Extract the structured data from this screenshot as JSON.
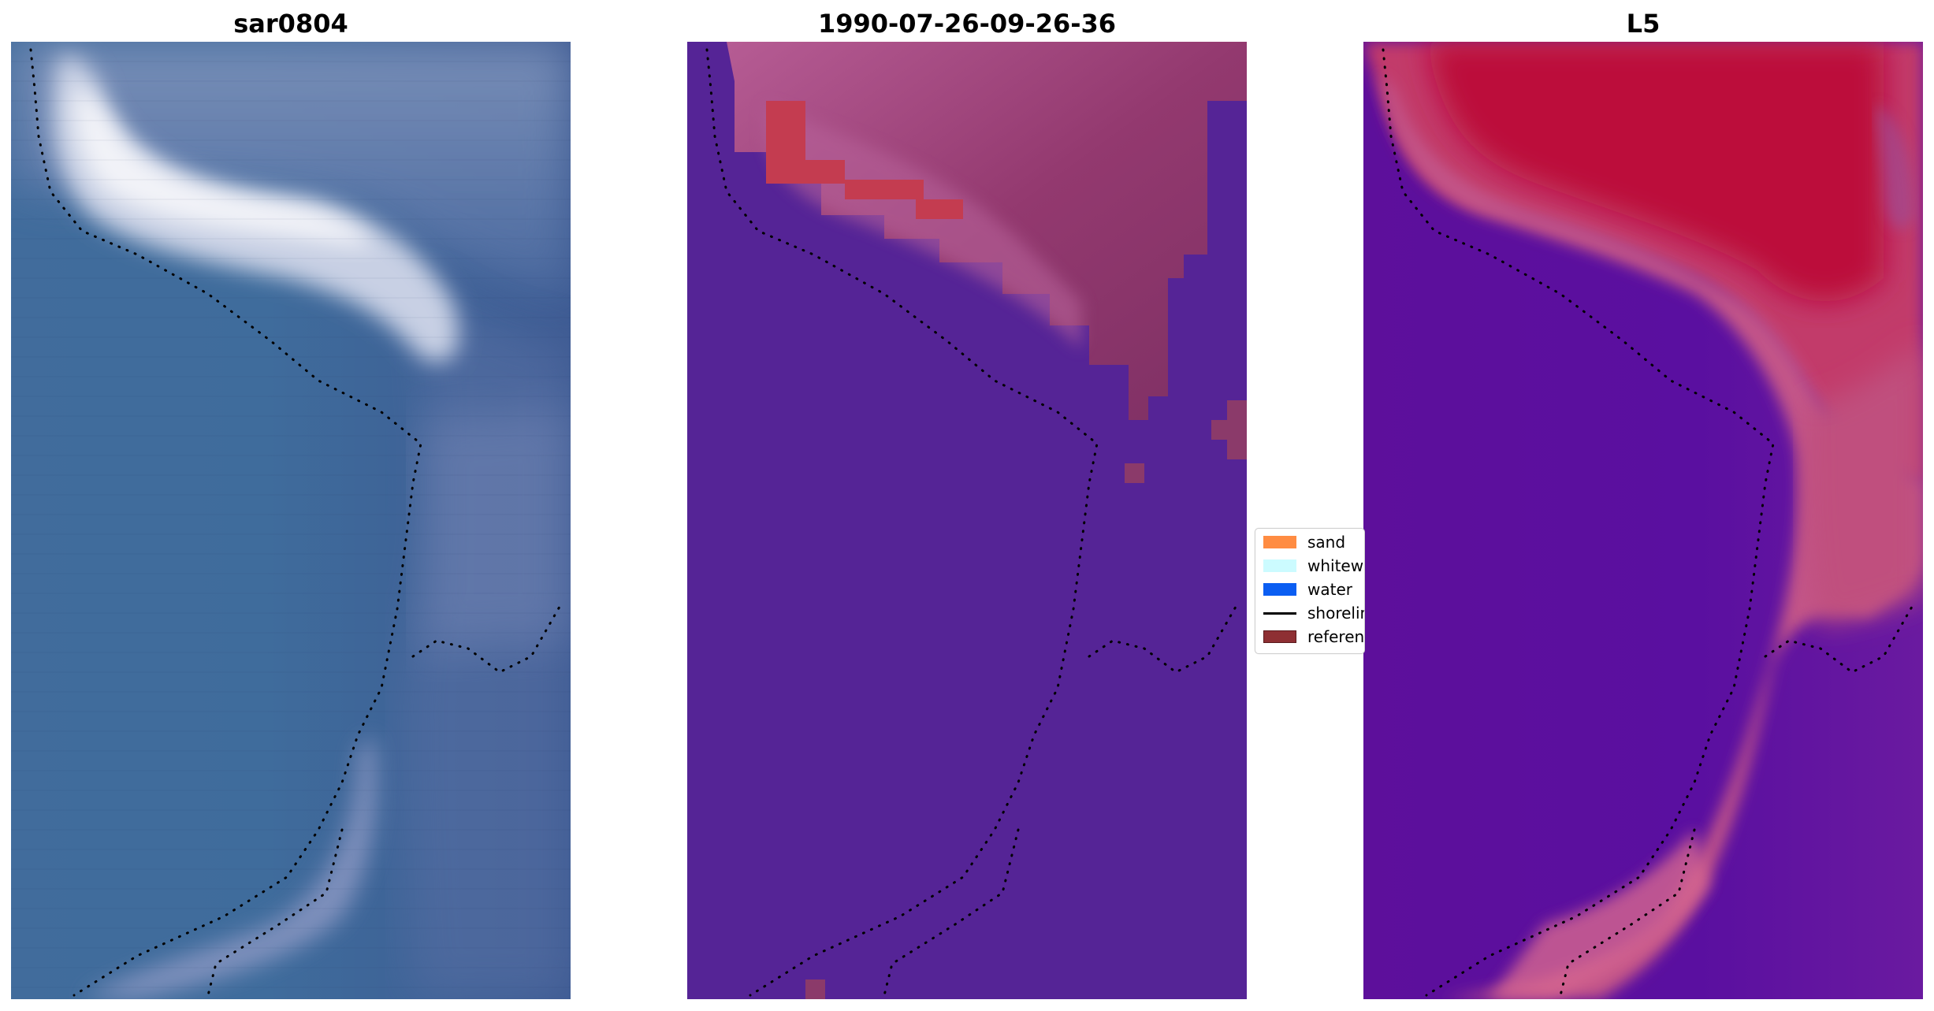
{
  "panels": [
    {
      "title": "sar0804"
    },
    {
      "title": "1990-07-26-09-26-36"
    },
    {
      "title": "L5"
    }
  ],
  "legend": {
    "items": [
      {
        "label": "sand",
        "color": "#ff8c42",
        "kind": "patch"
      },
      {
        "label": "whitewater",
        "color": "#ccfbff",
        "kind": "patch"
      },
      {
        "label": "water",
        "color": "#0b5ef2",
        "kind": "patch"
      },
      {
        "label": "shoreline",
        "color": "#000000",
        "kind": "line"
      },
      {
        "label": "reference shoreline",
        "color": "#8e2f33",
        "kind": "patch"
      }
    ]
  },
  "colors": {
    "sar_water": "#3e6899",
    "sar_deep": "#3c5a92",
    "sar_foam": "#eef0f6",
    "class_water": "#552496",
    "class_land": "#8b3a6a",
    "class_land_light": "#b15a92",
    "class_ref": "#c43c50",
    "l5_water": "#5e0f9c",
    "l5_land": "#bd0f3f",
    "l5_beach": "#c65a8c"
  }
}
